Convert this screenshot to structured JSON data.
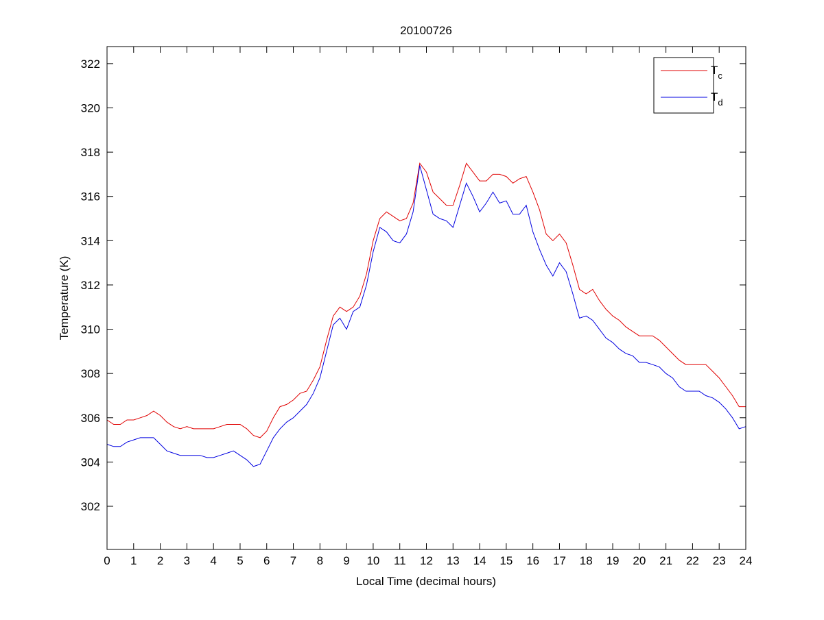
{
  "chart_data": {
    "type": "line",
    "title": "20100726",
    "xlabel": "Local Time (decimal hours)",
    "ylabel": "Temperature (K)",
    "xlim": [
      0,
      24
    ],
    "ylim": [
      300.05,
      322.77
    ],
    "xticks": [
      0,
      1,
      2,
      3,
      4,
      5,
      6,
      7,
      8,
      9,
      10,
      11,
      12,
      13,
      14,
      15,
      16,
      17,
      18,
      19,
      20,
      21,
      22,
      23,
      24
    ],
    "yticks": [
      302,
      304,
      306,
      308,
      310,
      312,
      314,
      316,
      318,
      320,
      322
    ],
    "grid": false,
    "legend_position": "top-right",
    "x_step": 0.25,
    "series": [
      {
        "name": "T",
        "subscript": "c",
        "color": "#e00000",
        "values": [
          305.9,
          305.7,
          305.7,
          305.9,
          305.9,
          306.0,
          306.1,
          306.3,
          306.1,
          305.8,
          305.6,
          305.5,
          305.6,
          305.5,
          305.5,
          305.5,
          305.5,
          305.6,
          305.7,
          305.7,
          305.7,
          305.5,
          305.2,
          305.1,
          305.4,
          306.0,
          306.5,
          306.6,
          306.8,
          307.1,
          307.2,
          307.7,
          308.3,
          309.5,
          310.6,
          311.0,
          310.8,
          311.0,
          311.5,
          312.5,
          314.0,
          315.0,
          315.3,
          315.1,
          314.9,
          315.0,
          315.7,
          317.5,
          317.1,
          316.2,
          315.9,
          315.6,
          315.6,
          316.5,
          317.5,
          317.1,
          316.7,
          316.7,
          317.0,
          317.0,
          316.9,
          316.6,
          316.8,
          316.9,
          316.2,
          315.4,
          314.3,
          314.0,
          314.3,
          313.9,
          312.9,
          311.8,
          311.6,
          311.8,
          311.3,
          310.9,
          310.6,
          310.4,
          310.1,
          309.9,
          309.7,
          309.7,
          309.7,
          309.5,
          309.2,
          308.9,
          308.6,
          308.4,
          308.4,
          308.4,
          308.4,
          308.1,
          307.8,
          307.4,
          307.0,
          306.5,
          306.5
        ]
      },
      {
        "name": "T",
        "subscript": "d",
        "color": "#0000e0",
        "values": [
          304.8,
          304.7,
          304.7,
          304.9,
          305.0,
          305.1,
          305.1,
          305.1,
          304.8,
          304.5,
          304.4,
          304.3,
          304.3,
          304.3,
          304.3,
          304.2,
          304.2,
          304.3,
          304.4,
          304.5,
          304.3,
          304.1,
          303.8,
          303.9,
          304.5,
          305.1,
          305.5,
          305.8,
          306.0,
          306.3,
          306.6,
          307.1,
          307.8,
          309.0,
          310.2,
          310.5,
          310.0,
          310.8,
          311.0,
          312.0,
          313.5,
          314.6,
          314.4,
          314.0,
          313.9,
          314.3,
          315.3,
          317.4,
          316.3,
          315.2,
          315.0,
          314.9,
          314.6,
          315.6,
          316.6,
          316.0,
          315.3,
          315.7,
          316.2,
          315.7,
          315.8,
          315.2,
          315.2,
          315.6,
          314.4,
          313.6,
          312.9,
          312.4,
          313.0,
          312.6,
          311.6,
          310.5,
          310.6,
          310.4,
          310.0,
          309.6,
          309.4,
          309.1,
          308.9,
          308.8,
          308.5,
          308.5,
          308.4,
          308.3,
          308.0,
          307.8,
          307.4,
          307.2,
          307.2,
          307.2,
          307.0,
          306.9,
          306.7,
          306.4,
          306.0,
          305.5,
          305.6
        ]
      }
    ]
  }
}
